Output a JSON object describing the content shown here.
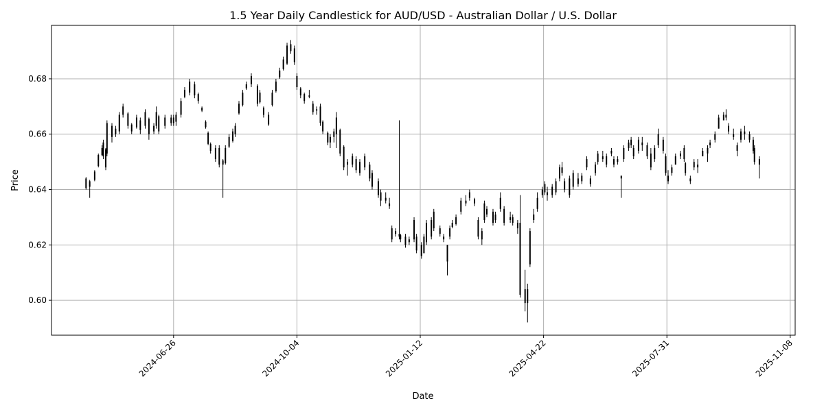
{
  "chart_data": {
    "type": "candlestick",
    "title": "1.5 Year Daily Candlestick for AUD/USD - Australian Dollar / U.S. Dollar",
    "xlabel": "Date",
    "ylabel": "Price",
    "xlim": [
      "2024-03-19",
      "2025-11-12"
    ],
    "ylim": [
      0.5874,
      0.6993
    ],
    "x_ticks": [
      "2024-06-26",
      "2024-10-04",
      "2025-01-12",
      "2025-04-22",
      "2025-07-31",
      "2025-11-08"
    ],
    "y_ticks": [
      "0.60",
      "0.62",
      "0.64",
      "0.66",
      "0.68"
    ],
    "grid": true,
    "colors": {
      "up": "#000000",
      "down": "#000000",
      "grid": "#b0b0b0"
    },
    "columns": [
      "date",
      "open",
      "high",
      "low",
      "close"
    ],
    "candles": [
      [
        "2024-04-16",
        0.644,
        0.6445,
        0.64,
        0.6405
      ],
      [
        "2024-04-19",
        0.641,
        0.6435,
        0.637,
        0.643
      ],
      [
        "2024-04-23",
        0.6435,
        0.647,
        0.643,
        0.6465
      ],
      [
        "2024-04-26",
        0.6485,
        0.653,
        0.648,
        0.6525
      ],
      [
        "2024-04-29",
        0.6525,
        0.656,
        0.652,
        0.655
      ],
      [
        "2024-04-30",
        0.657,
        0.658,
        0.651,
        0.652
      ],
      [
        "2024-05-02",
        0.6545,
        0.655,
        0.647,
        0.648
      ],
      [
        "2024-05-03",
        0.653,
        0.665,
        0.652,
        0.664
      ],
      [
        "2024-05-07",
        0.663,
        0.664,
        0.657,
        0.659
      ],
      [
        "2024-05-10",
        0.66,
        0.663,
        0.659,
        0.662
      ],
      [
        "2024-05-13",
        0.661,
        0.668,
        0.66,
        0.667
      ],
      [
        "2024-05-16",
        0.67,
        0.671,
        0.666,
        0.667
      ],
      [
        "2024-05-20",
        0.6675,
        0.668,
        0.662,
        0.663
      ],
      [
        "2024-05-23",
        0.6635,
        0.664,
        0.66,
        0.661
      ],
      [
        "2024-05-27",
        0.6625,
        0.667,
        0.662,
        0.666
      ],
      [
        "2024-05-30",
        0.665,
        0.666,
        0.66,
        0.6615
      ],
      [
        "2024-06-03",
        0.663,
        0.669,
        0.662,
        0.668
      ],
      [
        "2024-06-06",
        0.6655,
        0.666,
        0.658,
        0.66
      ],
      [
        "2024-06-10",
        0.661,
        0.664,
        0.66,
        0.663
      ],
      [
        "2024-06-12",
        0.663,
        0.67,
        0.662,
        0.668
      ],
      [
        "2024-06-14",
        0.6665,
        0.667,
        0.66,
        0.661
      ],
      [
        "2024-06-19",
        0.663,
        0.667,
        0.662,
        0.666
      ],
      [
        "2024-06-24",
        0.664,
        0.667,
        0.663,
        0.666
      ],
      [
        "2024-06-26",
        0.666,
        0.667,
        0.663,
        0.664
      ],
      [
        "2024-06-28",
        0.6645,
        0.668,
        0.663,
        0.667
      ],
      [
        "2024-07-02",
        0.667,
        0.673,
        0.666,
        0.672
      ],
      [
        "2024-07-05",
        0.6735,
        0.677,
        0.673,
        0.676
      ],
      [
        "2024-07-09",
        0.675,
        0.68,
        0.674,
        0.679
      ],
      [
        "2024-07-13",
        0.678,
        0.679,
        0.673,
        0.674
      ],
      [
        "2024-07-16",
        0.6745,
        0.675,
        0.671,
        0.672
      ],
      [
        "2024-07-19",
        0.6695,
        0.67,
        0.668,
        0.6685
      ],
      [
        "2024-07-22",
        0.6645,
        0.665,
        0.662,
        0.6625
      ],
      [
        "2024-07-24",
        0.6605,
        0.661,
        0.656,
        0.6565
      ],
      [
        "2024-07-26",
        0.6565,
        0.657,
        0.653,
        0.654
      ],
      [
        "2024-07-30",
        0.655,
        0.656,
        0.65,
        0.651
      ],
      [
        "2024-08-02",
        0.655,
        0.656,
        0.648,
        0.649
      ],
      [
        "2024-08-05",
        0.6505,
        0.651,
        0.637,
        0.649
      ],
      [
        "2024-08-07",
        0.6495,
        0.656,
        0.649,
        0.655
      ],
      [
        "2024-08-10",
        0.6555,
        0.66,
        0.655,
        0.659
      ],
      [
        "2024-08-13",
        0.6575,
        0.662,
        0.657,
        0.661
      ],
      [
        "2024-08-15",
        0.66,
        0.664,
        0.659,
        0.663
      ],
      [
        "2024-08-18",
        0.6675,
        0.672,
        0.667,
        0.671
      ],
      [
        "2024-08-21",
        0.6705,
        0.676,
        0.67,
        0.675
      ],
      [
        "2024-08-24",
        0.6765,
        0.679,
        0.676,
        0.678
      ],
      [
        "2024-08-28",
        0.678,
        0.682,
        0.677,
        0.681
      ],
      [
        "2024-09-02",
        0.6775,
        0.678,
        0.67,
        0.671
      ],
      [
        "2024-09-04",
        0.6715,
        0.676,
        0.671,
        0.675
      ],
      [
        "2024-09-07",
        0.6695,
        0.67,
        0.666,
        0.667
      ],
      [
        "2024-09-11",
        0.6635,
        0.668,
        0.663,
        0.667
      ],
      [
        "2024-09-14",
        0.6705,
        0.676,
        0.67,
        0.675
      ],
      [
        "2024-09-17",
        0.6755,
        0.68,
        0.675,
        0.679
      ],
      [
        "2024-09-20",
        0.6805,
        0.684,
        0.68,
        0.683
      ],
      [
        "2024-09-23",
        0.6835,
        0.688,
        0.683,
        0.687
      ],
      [
        "2024-09-26",
        0.6855,
        0.693,
        0.685,
        0.692
      ],
      [
        "2024-09-29",
        0.6925,
        0.694,
        0.689,
        0.69
      ],
      [
        "2024-10-02",
        0.691,
        0.692,
        0.685,
        0.686
      ],
      [
        "2024-10-04",
        0.681,
        0.682,
        0.676,
        0.677
      ],
      [
        "2024-10-07",
        0.6765,
        0.677,
        0.673,
        0.674
      ],
      [
        "2024-10-10",
        0.6745,
        0.675,
        0.671,
        0.672
      ],
      [
        "2024-10-14",
        0.6735,
        0.676,
        0.673,
        0.674
      ],
      [
        "2024-10-17",
        0.671,
        0.672,
        0.667,
        0.668
      ],
      [
        "2024-10-20",
        0.669,
        0.67,
        0.667,
        0.6685
      ],
      [
        "2024-10-23",
        0.67,
        0.671,
        0.663,
        0.664
      ],
      [
        "2024-10-25",
        0.6645,
        0.665,
        0.66,
        0.661
      ],
      [
        "2024-10-29",
        0.6605,
        0.661,
        0.656,
        0.657
      ],
      [
        "2024-10-31",
        0.657,
        0.66,
        0.655,
        0.659
      ],
      [
        "2024-11-03",
        0.659,
        0.662,
        0.657,
        0.661
      ],
      [
        "2024-11-05",
        0.66,
        0.668,
        0.655,
        0.666
      ],
      [
        "2024-11-08",
        0.6615,
        0.662,
        0.652,
        0.653
      ],
      [
        "2024-11-11",
        0.6555,
        0.656,
        0.647,
        0.648
      ],
      [
        "2024-11-14",
        0.649,
        0.651,
        0.645,
        0.65
      ],
      [
        "2024-11-18",
        0.649,
        0.653,
        0.648,
        0.652
      ],
      [
        "2024-11-21",
        0.651,
        0.652,
        0.646,
        0.647
      ],
      [
        "2024-11-24",
        0.646,
        0.651,
        0.645,
        0.65
      ],
      [
        "2024-11-28",
        0.648,
        0.653,
        0.647,
        0.652
      ],
      [
        "2024-12-02",
        0.649,
        0.65,
        0.643,
        0.644
      ],
      [
        "2024-12-04",
        0.646,
        0.647,
        0.64,
        0.641
      ],
      [
        "2024-12-09",
        0.643,
        0.644,
        0.637,
        0.638
      ],
      [
        "2024-12-11",
        0.639,
        0.64,
        0.634,
        0.636
      ],
      [
        "2024-12-15",
        0.637,
        0.639,
        0.635,
        0.636
      ],
      [
        "2024-12-18",
        0.635,
        0.637,
        0.633,
        0.634
      ],
      [
        "2024-12-20",
        0.622,
        0.627,
        0.621,
        0.626
      ],
      [
        "2024-12-23",
        0.625,
        0.626,
        0.623,
        0.624
      ],
      [
        "2024-12-26",
        0.624,
        0.665,
        0.622,
        0.623
      ],
      [
        "2024-12-27",
        0.6235,
        0.624,
        0.621,
        0.622
      ],
      [
        "2024-12-31",
        0.623,
        0.624,
        0.619,
        0.62
      ],
      [
        "2025-01-03",
        0.621,
        0.623,
        0.62,
        0.622
      ],
      [
        "2025-01-07",
        0.622,
        0.63,
        0.621,
        0.629
      ],
      [
        "2025-01-09",
        0.623,
        0.624,
        0.617,
        0.618
      ],
      [
        "2025-01-13",
        0.62,
        0.621,
        0.615,
        0.616
      ],
      [
        "2025-01-15",
        0.617,
        0.624,
        0.617,
        0.623
      ],
      [
        "2025-01-17",
        0.621,
        0.629,
        0.62,
        0.628
      ],
      [
        "2025-01-21",
        0.623,
        0.63,
        0.622,
        0.629
      ],
      [
        "2025-01-23",
        0.626,
        0.633,
        0.625,
        0.632
      ],
      [
        "2025-01-28",
        0.626,
        0.627,
        0.623,
        0.624
      ],
      [
        "2025-01-31",
        0.623,
        0.624,
        0.621,
        0.622
      ],
      [
        "2025-02-03",
        0.62,
        0.62,
        0.609,
        0.614
      ],
      [
        "2025-02-05",
        0.623,
        0.627,
        0.622,
        0.626
      ],
      [
        "2025-02-07",
        0.6265,
        0.629,
        0.626,
        0.628
      ],
      [
        "2025-02-10",
        0.6275,
        0.631,
        0.627,
        0.63
      ],
      [
        "2025-02-14",
        0.632,
        0.637,
        0.631,
        0.636
      ],
      [
        "2025-02-18",
        0.635,
        0.638,
        0.634,
        0.636
      ],
      [
        "2025-02-21",
        0.637,
        0.64,
        0.636,
        0.639
      ],
      [
        "2025-02-25",
        0.6365,
        0.637,
        0.634,
        0.635
      ],
      [
        "2025-02-28",
        0.629,
        0.63,
        0.622,
        0.623
      ],
      [
        "2025-03-03",
        0.622,
        0.626,
        0.62,
        0.625
      ],
      [
        "2025-03-05",
        0.629,
        0.636,
        0.628,
        0.635
      ],
      [
        "2025-03-07",
        0.633,
        0.634,
        0.63,
        0.631
      ],
      [
        "2025-03-12",
        0.632,
        0.633,
        0.627,
        0.628
      ],
      [
        "2025-03-14",
        0.629,
        0.632,
        0.628,
        0.631
      ],
      [
        "2025-03-18",
        0.633,
        0.639,
        0.632,
        0.637
      ],
      [
        "2025-03-21",
        0.633,
        0.634,
        0.627,
        0.628
      ],
      [
        "2025-03-26",
        0.629,
        0.632,
        0.628,
        0.63
      ],
      [
        "2025-03-28",
        0.63,
        0.631,
        0.627,
        0.628
      ],
      [
        "2025-04-01",
        0.628,
        0.629,
        0.624,
        0.626
      ],
      [
        "2025-04-03",
        0.628,
        0.638,
        0.601,
        0.602
      ],
      [
        "2025-04-07",
        0.604,
        0.611,
        0.596,
        0.599
      ],
      [
        "2025-04-09",
        0.599,
        0.606,
        0.592,
        0.604
      ],
      [
        "2025-04-11",
        0.613,
        0.626,
        0.612,
        0.625
      ],
      [
        "2025-04-14",
        0.629,
        0.633,
        0.628,
        0.631
      ],
      [
        "2025-04-17",
        0.633,
        0.639,
        0.632,
        0.637
      ],
      [
        "2025-04-21",
        0.638,
        0.641,
        0.637,
        0.64
      ],
      [
        "2025-04-23",
        0.642,
        0.643,
        0.638,
        0.639
      ],
      [
        "2025-04-25",
        0.639,
        0.641,
        0.636,
        0.638
      ],
      [
        "2025-04-29",
        0.638,
        0.642,
        0.637,
        0.641
      ],
      [
        "2025-05-02",
        0.639,
        0.644,
        0.638,
        0.643
      ],
      [
        "2025-05-05",
        0.644,
        0.649,
        0.643,
        0.648
      ],
      [
        "2025-05-07",
        0.648,
        0.65,
        0.645,
        0.646
      ],
      [
        "2025-05-09",
        0.643,
        0.644,
        0.639,
        0.64
      ],
      [
        "2025-05-13",
        0.638,
        0.645,
        0.637,
        0.644
      ],
      [
        "2025-05-16",
        0.641,
        0.647,
        0.64,
        0.646
      ],
      [
        "2025-05-20",
        0.644,
        0.646,
        0.641,
        0.642
      ],
      [
        "2025-05-23",
        0.643,
        0.646,
        0.642,
        0.645
      ],
      [
        "2025-05-27",
        0.648,
        0.652,
        0.647,
        0.651
      ],
      [
        "2025-05-30",
        0.644,
        0.645,
        0.641,
        0.642
      ],
      [
        "2025-06-03",
        0.646,
        0.65,
        0.645,
        0.649
      ],
      [
        "2025-06-05",
        0.65,
        0.654,
        0.649,
        0.653
      ],
      [
        "2025-06-09",
        0.651,
        0.654,
        0.65,
        0.652
      ],
      [
        "2025-06-12",
        0.652,
        0.653,
        0.648,
        0.649
      ],
      [
        "2025-06-16",
        0.653,
        0.655,
        0.652,
        0.654
      ],
      [
        "2025-06-18",
        0.651,
        0.652,
        0.648,
        0.649
      ],
      [
        "2025-06-21",
        0.65,
        0.652,
        0.649,
        0.651
      ],
      [
        "2025-06-24",
        0.645,
        0.645,
        0.637,
        0.644
      ],
      [
        "2025-06-26",
        0.651,
        0.656,
        0.65,
        0.655
      ],
      [
        "2025-06-30",
        0.655,
        0.658,
        0.654,
        0.657
      ],
      [
        "2025-07-02",
        0.656,
        0.659,
        0.655,
        0.658
      ],
      [
        "2025-07-04",
        0.655,
        0.656,
        0.651,
        0.652
      ],
      [
        "2025-07-08",
        0.654,
        0.659,
        0.653,
        0.658
      ],
      [
        "2025-07-11",
        0.656,
        0.659,
        0.654,
        0.657
      ],
      [
        "2025-07-15",
        0.656,
        0.657,
        0.651,
        0.652
      ],
      [
        "2025-07-18",
        0.653,
        0.655,
        0.647,
        0.648
      ],
      [
        "2025-07-21",
        0.651,
        0.656,
        0.65,
        0.655
      ],
      [
        "2025-07-24",
        0.656,
        0.662,
        0.655,
        0.66
      ],
      [
        "2025-07-28",
        0.658,
        0.659,
        0.653,
        0.654
      ],
      [
        "2025-07-30",
        0.652,
        0.653,
        0.645,
        0.646
      ],
      [
        "2025-08-01",
        0.645,
        0.647,
        0.642,
        0.643
      ],
      [
        "2025-08-04",
        0.646,
        0.649,
        0.645,
        0.648
      ],
      [
        "2025-08-07",
        0.649,
        0.653,
        0.649,
        0.652
      ],
      [
        "2025-08-11",
        0.652,
        0.654,
        0.651,
        0.653
      ],
      [
        "2025-08-14",
        0.655,
        0.656,
        0.65,
        0.651
      ],
      [
        "2025-08-15",
        0.6495,
        0.65,
        0.645,
        0.646
      ],
      [
        "2025-08-19",
        0.644,
        0.645,
        0.642,
        0.643
      ],
      [
        "2025-08-22",
        0.648,
        0.651,
        0.647,
        0.65
      ],
      [
        "2025-08-25",
        0.649,
        0.651,
        0.646,
        0.648
      ],
      [
        "2025-08-29",
        0.652,
        0.655,
        0.652,
        0.654
      ],
      [
        "2025-09-02",
        0.653,
        0.656,
        0.65,
        0.655
      ],
      [
        "2025-09-04",
        0.656,
        0.658,
        0.655,
        0.657
      ],
      [
        "2025-09-08",
        0.658,
        0.661,
        0.657,
        0.66
      ],
      [
        "2025-09-11",
        0.662,
        0.667,
        0.662,
        0.666
      ],
      [
        "2025-09-15",
        0.665,
        0.668,
        0.665,
        0.667
      ],
      [
        "2025-09-17",
        0.667,
        0.669,
        0.665,
        0.666
      ],
      [
        "2025-09-19",
        0.663,
        0.664,
        0.66,
        0.661
      ],
      [
        "2025-09-23",
        0.66,
        0.662,
        0.658,
        0.659
      ],
      [
        "2025-09-26",
        0.656,
        0.657,
        0.652,
        0.654
      ],
      [
        "2025-09-29",
        0.658,
        0.662,
        0.657,
        0.661
      ],
      [
        "2025-10-02",
        0.661,
        0.663,
        0.658,
        0.66
      ],
      [
        "2025-10-06",
        0.66,
        0.661,
        0.657,
        0.658
      ],
      [
        "2025-10-09",
        0.658,
        0.659,
        0.653,
        0.654
      ],
      [
        "2025-10-10",
        0.655,
        0.656,
        0.649,
        0.65
      ],
      [
        "2025-10-14",
        0.651,
        0.652,
        0.644,
        0.649
      ]
    ]
  }
}
